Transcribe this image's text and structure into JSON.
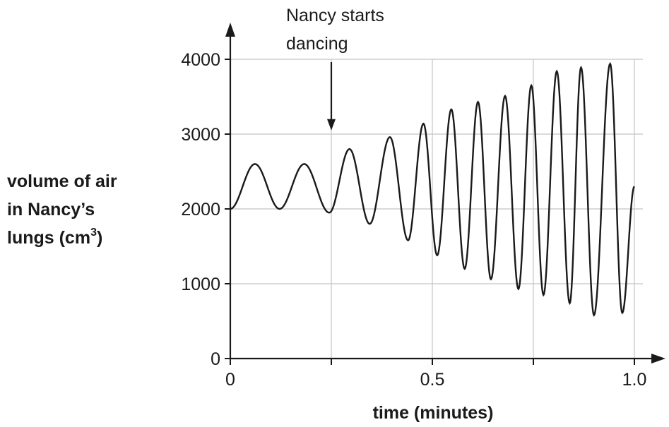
{
  "chart_data": {
    "type": "line",
    "xlabel": "time (minutes)",
    "ylabel_lines": [
      "volume of air",
      "in Nancy’s",
      "lungs (cm"
    ],
    "ylabel_sup": "3",
    "ylabel_close": ")",
    "xlim": [
      0,
      1.0
    ],
    "ylim": [
      0,
      4000
    ],
    "x_tick_labels": [
      {
        "value": 0,
        "label": "0"
      },
      {
        "value": 0.5,
        "label": "0.5"
      },
      {
        "value": 1.0,
        "label": "1.0"
      }
    ],
    "x_minor_ticks": [
      0.25,
      0.75
    ],
    "y_tick_labels": [
      {
        "value": 0,
        "label": "0"
      },
      {
        "value": 1000,
        "label": "1000"
      },
      {
        "value": 2000,
        "label": "2000"
      },
      {
        "value": 3000,
        "label": "3000"
      },
      {
        "value": 4000,
        "label": "4000"
      }
    ],
    "grid": true,
    "annotation": {
      "lines": [
        "Nancy starts",
        "dancing"
      ],
      "x": 0.25,
      "arrow_tip_y": 3050
    },
    "series": [
      {
        "x": [
          0,
          0.061,
          0.122,
          0.183,
          0.245,
          0.295,
          0.345,
          0.395,
          0.44,
          0.478,
          0.512,
          0.547,
          0.58,
          0.613,
          0.645,
          0.68,
          0.713,
          0.745,
          0.775,
          0.808,
          0.84,
          0.868,
          0.9,
          0.94,
          0.97,
          1.0
        ],
        "values": [
          2000,
          2600,
          2000,
          2600,
          1950,
          2800,
          1800,
          2960,
          1580,
          3140,
          1380,
          3330,
          1200,
          3430,
          1060,
          3510,
          930,
          3650,
          850,
          3840,
          740,
          3890,
          580,
          3940,
          610,
          2300
        ]
      }
    ]
  }
}
